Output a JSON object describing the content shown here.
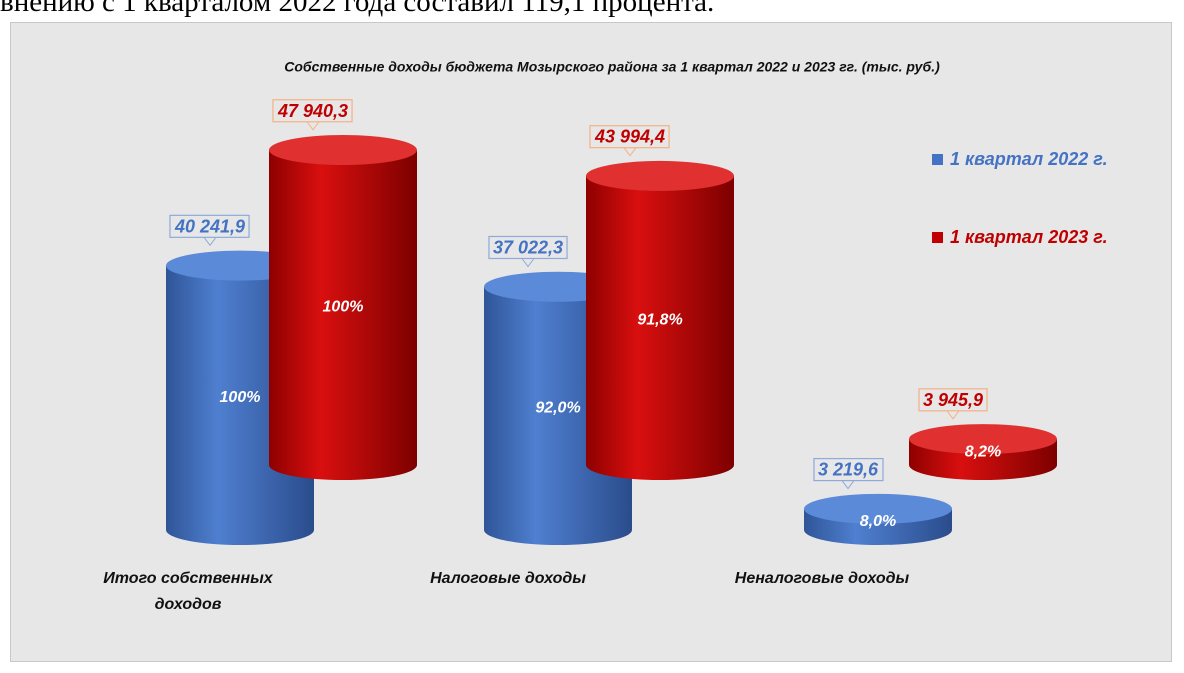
{
  "header_text": "внению с 1 кварталом 2022 года составил 119,1 процента.",
  "chart_data": {
    "type": "cylinder",
    "title": "Собственные доходы бюджета Мозырского района за 1 квартал 2022 и 2023 гг. (тыс. руб.)",
    "categories": [
      "Итого собственных доходов",
      "Налоговые доходы",
      "Неналоговые доходы"
    ],
    "series": [
      {
        "name": "1 квартал 2022 г.",
        "color": "#4472c4",
        "values": [
          40241.9,
          37022.3,
          3219.6
        ],
        "value_labels": [
          "40 241,9",
          "37 022,3",
          "3 219,6"
        ],
        "inner_labels": [
          "100%",
          "92,0%",
          "8,0%"
        ]
      },
      {
        "name": "1 квартал 2023 г.",
        "color": "#c00000",
        "values": [
          47940.3,
          43994.4,
          3945.9
        ],
        "value_labels": [
          "47 940,3",
          "43 994,4",
          "3 945,9"
        ],
        "inner_labels": [
          "100%",
          "91,8%",
          "8,2%"
        ]
      }
    ],
    "legend": "right"
  }
}
